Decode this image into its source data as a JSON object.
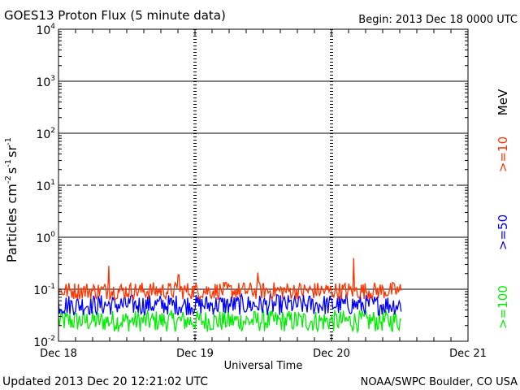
{
  "chart_data": {
    "type": "line",
    "title": "GOES13 Proton Flux (5 minute data)",
    "begin_label": "Begin: 2013 Dec 18 0000 UTC",
    "xlabel": "Universal Time",
    "ylabel_main": "Particles cm",
    "ylabel_parts": [
      "Particles cm",
      "-2",
      "s",
      "-1",
      "sr",
      "-1"
    ],
    "x_range_days": [
      0,
      3
    ],
    "x_ticks": [
      {
        "day": 0,
        "label": "Dec 18"
      },
      {
        "day": 1,
        "label": "Dec 19"
      },
      {
        "day": 2,
        "label": "Dec 20"
      },
      {
        "day": 3,
        "label": "Dec 21"
      }
    ],
    "y_scale": "log",
    "y_decades": [
      -2,
      4
    ],
    "y_ticks": [
      {
        "base": "10",
        "exp": "-2"
      },
      {
        "base": "10",
        "exp": "-1"
      },
      {
        "base": "10",
        "exp": "0"
      },
      {
        "base": "10",
        "exp": "1"
      },
      {
        "base": "10",
        "exp": "2"
      },
      {
        "base": "10",
        "exp": "3"
      },
      {
        "base": "10",
        "exp": "4"
      }
    ],
    "threshold_lines": [
      {
        "log10": -1,
        "style": "solid"
      },
      {
        "log10": 0,
        "style": "solid"
      },
      {
        "log10": 1,
        "style": "dashed"
      },
      {
        "log10": 2,
        "style": "solid"
      },
      {
        "log10": 3,
        "style": "solid"
      }
    ],
    "data_end_day": 2.51,
    "series": [
      {
        "name": ">=10 MeV",
        "label": ">=10",
        "color": "#ff3300",
        "baseline_log10": -0.98,
        "noise_low": -0.22,
        "noise_high": 0.12,
        "spikes": [
          {
            "day": 0.37,
            "log10": -0.55
          },
          {
            "day": 0.88,
            "log10": -0.72
          },
          {
            "day": 2.16,
            "log10": -0.4
          },
          {
            "day": 1.46,
            "log10": -0.68
          }
        ]
      },
      {
        "name": ">=50 MeV",
        "label": ">=50",
        "color": "#0000ff",
        "baseline_log10": -1.3,
        "noise_low": -0.2,
        "noise_high": 0.2,
        "spikes": []
      },
      {
        "name": ">=100 MeV",
        "label": ">=100",
        "color": "#00ee00",
        "baseline_log10": -1.62,
        "noise_low": -0.2,
        "noise_high": 0.22,
        "spikes": []
      }
    ],
    "legend_unit": "MeV"
  },
  "footer": {
    "updated": "Updated 2013 Dec 20 12:21:02 UTC",
    "source": "NOAA/SWPC Boulder, CO USA"
  }
}
